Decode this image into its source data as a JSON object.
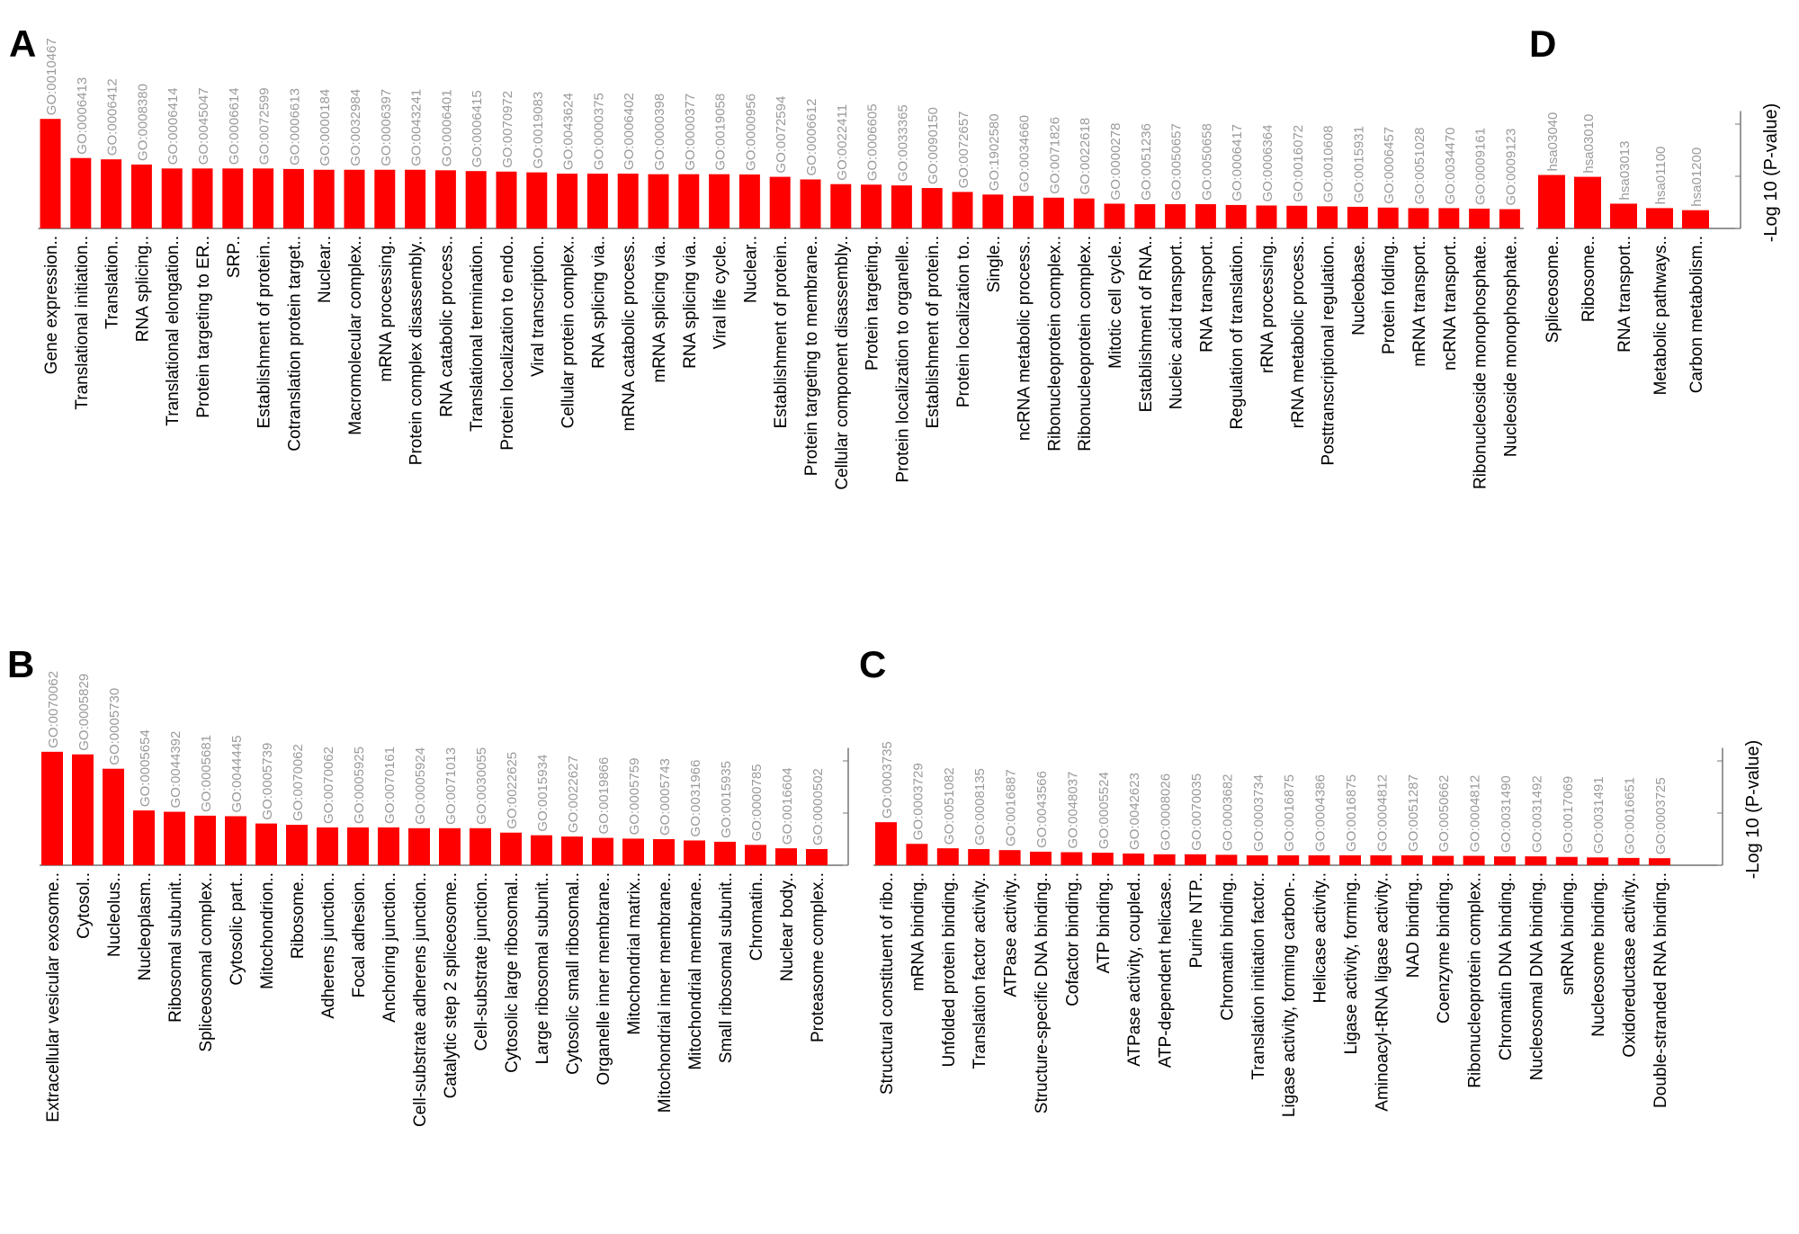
{
  "y_axis_label": "-Log 10 (P-value)",
  "chart_data": [
    {
      "panel": "A",
      "type": "bar",
      "ylim": [
        0,
        4.5
      ],
      "ylabel": "",
      "ids": [
        "GO:0010467",
        "GO:0006413",
        "GO:0006412",
        "GO:0008380",
        "GO:0006414",
        "GO:0045047",
        "GO:0006614",
        "GO:0072599",
        "GO:0006613",
        "GO:0000184",
        "GO:0032984",
        "GO:0006397",
        "GO:0043241",
        "GO:0006401",
        "GO:0006415",
        "GO:0070972",
        "GO:0019083",
        "GO:0043624",
        "GO:0000375",
        "GO:0006402",
        "GO:0000398",
        "GO:0000377",
        "GO:0019058",
        "GO:0000956",
        "GO:0072594",
        "GO:0006612",
        "GO:0022411",
        "GO:0006605",
        "GO:0033365",
        "GO:0090150",
        "GO:0072657",
        "GO:1902580",
        "GO:0034660",
        "GO:0071826",
        "GO:0022618",
        "GO:0000278",
        "GO:0051236",
        "GO:0050657",
        "GO:0050658",
        "GO:0006417",
        "GO:0006364",
        "GO:0016072",
        "GO:0010608",
        "GO:0015931",
        "GO:0006457",
        "GO:0051028",
        "GO:0034470",
        "GO:0009161",
        "GO:0009123"
      ],
      "categories": [
        "Gene expression..",
        "Translational initiation..",
        "Translation..",
        "RNA splicing..",
        "Translational elongation..",
        "Protein targeting to ER..",
        "SRP..",
        "Establishment of protein..",
        "Cotranslation protein target..",
        "Nuclear..",
        "Macromolecular complex..",
        "mRNA processing..",
        "Protein complex disassembly..",
        "RNA catabolic process..",
        "Translational termination..",
        "Protein localization to endo..",
        "Viral transcription..",
        "Cellular protein complex..",
        "RNA splicing via..",
        "mRNA catabolic process..",
        "mRNA splicing via..",
        "RNA splicing via..",
        "Viral life cycle..",
        "Nuclear..",
        "Establishment of protein..",
        "Protein targeting to membrane..",
        "Cellular component disassembly..",
        "Protein targeting..",
        "Protein localization to organelle..",
        "Establishment of protein..",
        "Protein localization to..",
        "Single..",
        "ncRNA metabolic process..",
        "Ribonucleoprotein complex..",
        "Ribonucleoprotein complex..",
        "Mitotic cell cycle..",
        "Establishment of RNA..",
        "Nucleic acid transport..",
        "RNA transport..",
        "Regulation of translation..",
        "rRNA processing..",
        "rRNA metabolic process..",
        "Posttranscriptional regulation..",
        "Nucleobase..",
        "Protein folding..",
        "mRNA transport..",
        "ncRNA transport..",
        "Ribonucleoside monophosphate..",
        "Nucleoside monophosphate.."
      ],
      "values": [
        4.2,
        2.7,
        2.65,
        2.45,
        2.3,
        2.3,
        2.3,
        2.3,
        2.28,
        2.25,
        2.25,
        2.25,
        2.25,
        2.23,
        2.2,
        2.18,
        2.15,
        2.1,
        2.1,
        2.1,
        2.08,
        2.08,
        2.08,
        2.07,
        1.98,
        1.88,
        1.7,
        1.68,
        1.65,
        1.55,
        1.4,
        1.3,
        1.25,
        1.18,
        1.15,
        0.95,
        0.93,
        0.93,
        0.93,
        0.9,
        0.88,
        0.87,
        0.85,
        0.83,
        0.8,
        0.78,
        0.78,
        0.76,
        0.74
      ]
    },
    {
      "panel": "B",
      "type": "bar",
      "ylim": [
        0,
        4.5
      ],
      "ylabel": "",
      "ids": [
        "GO:0070062",
        "GO:0005829",
        "GO:0005730",
        "GO:0005654",
        "GO:0044392",
        "GO:0005681",
        "GO:0044445",
        "GO:0005739",
        "GO:0070062",
        "GO:0070062",
        "GO:0005925",
        "GO:0070161",
        "GO:0005924",
        "GO:0071013",
        "GO:0030055",
        "GO:0022625",
        "GO:0015934",
        "GO:0022627",
        "GO:0019866",
        "GO:0005759",
        "GO:0005743",
        "GO:0031966",
        "GO:0015935",
        "GO:0000785",
        "GO:0016604",
        "GO:0000502"
      ],
      "categories": [
        "Extracellular vesicular exosome..",
        "Cytosol..",
        "Nucleolus..",
        "Nucleoplasm..",
        "Ribosomal subunit..",
        "Spliceosomal complex..",
        "Cytosolic part..",
        "Mitochondrion..",
        "Ribosome..",
        "Adherens junction..",
        "Focal adhesion..",
        "Anchoring junction..",
        "Cell-substrate adherens junction..",
        "Catalytic step 2 spliceosome..",
        "Cell-substrate junction..",
        "Cytosolic large ribosomal..",
        "Large ribosomal subunit..",
        "Cytosolic small ribosomal..",
        "Organelle inner membrane..",
        "Mitochondrial matrix..",
        "Mitochondrial inner membrane..",
        "Mitochondrial membrane..",
        "Small ribosomal subunit..",
        "Chromatin..",
        "Nuclear body..",
        "Proteasome complex.."
      ],
      "values": [
        4.35,
        4.25,
        3.7,
        2.1,
        2.05,
        1.9,
        1.88,
        1.6,
        1.55,
        1.45,
        1.45,
        1.45,
        1.42,
        1.42,
        1.42,
        1.25,
        1.15,
        1.1,
        1.05,
        1.02,
        1.0,
        0.95,
        0.9,
        0.78,
        0.65,
        0.62
      ]
    },
    {
      "panel": "C",
      "type": "bar",
      "ylim": [
        0,
        4.5
      ],
      "ylabel": "-Log 10 (P-value)",
      "ids": [
        "GO:0003735",
        "GO:0003729",
        "GO:0051082",
        "GO:0008135",
        "GO:0016887",
        "GO:0043566",
        "GO:0048037",
        "GO:0005524",
        "GO:0042623",
        "GO:0008026",
        "GO:0070035",
        "GO:0003682",
        "GO:0003734",
        "GO:0016875",
        "GO:0004386",
        "GO:0016875",
        "GO:0004812",
        "GO:0051287",
        "GO:0050662",
        "GO:0004812",
        "GO:0031490",
        "GO:0031492",
        "GO:0017069",
        "GO:0031491",
        "GO:0016651",
        "GO:0003725"
      ],
      "categories": [
        "Structural constituent of ribo..",
        "mRNA binding..",
        "Unfolded protein binding..",
        "Translation factor activity..",
        "ATPase activity..",
        "Structure-specific DNA binding..",
        "Cofactor binding..",
        "ATP binding..",
        "ATPase activity, coupled..",
        "ATP-dependent helicase..",
        "Purine NTP..",
        "Chromatin binding..",
        "Translation initiation factor..",
        "Ligase activity, forming carbon-..",
        "Helicase activity..",
        "Ligase activity, forming..",
        "Aminoacyl-tRNA ligase activity..",
        "NAD binding..",
        "Coenzyme binding..",
        "Ribonucleoprotein complex..",
        "Chromatin DNA binding..",
        "Nucleosomal DNA binding..",
        "snRNA binding..",
        "Nucleosome binding..",
        "Oxidoreductase activity..",
        "Double-stranded RNA binding.."
      ],
      "values": [
        1.65,
        0.82,
        0.65,
        0.62,
        0.58,
        0.52,
        0.5,
        0.48,
        0.45,
        0.42,
        0.42,
        0.4,
        0.38,
        0.38,
        0.38,
        0.38,
        0.38,
        0.38,
        0.36,
        0.36,
        0.34,
        0.34,
        0.32,
        0.3,
        0.28,
        0.27
      ]
    },
    {
      "panel": "D",
      "type": "bar",
      "ylim": [
        0,
        4.5
      ],
      "ylabel": "-Log 10 (P-value)",
      "ids": [
        "hsa03040",
        "hsa03010",
        "hsa03013",
        "hsa01100",
        "hsa01200"
      ],
      "categories": [
        "Spliceosome..",
        "Ribosome..",
        "RNA transport..",
        "Metabolic pathways..",
        "Carbon metabolism.."
      ],
      "values": [
        2.05,
        1.98,
        0.95,
        0.78,
        0.7
      ]
    }
  ]
}
